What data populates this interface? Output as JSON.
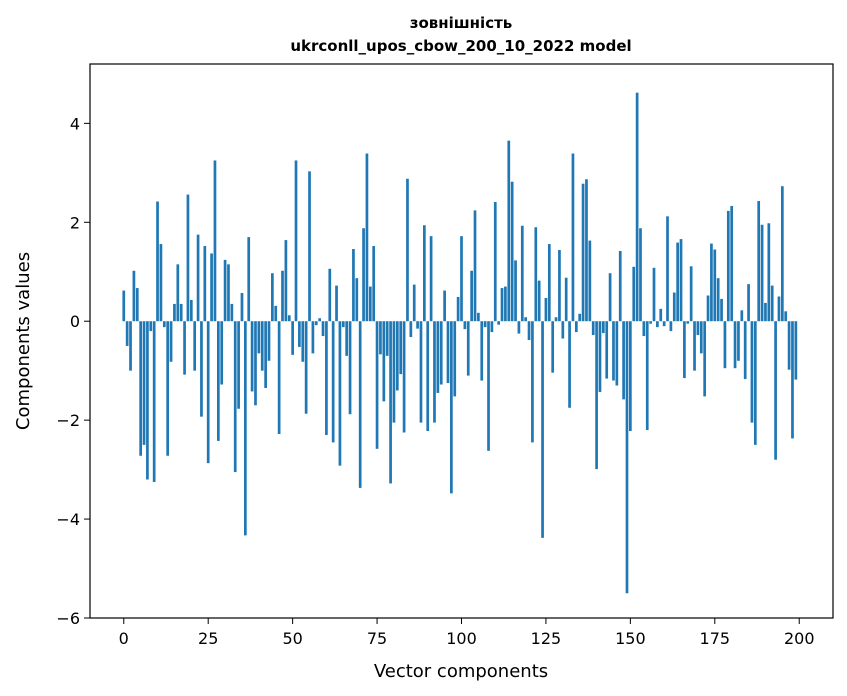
{
  "chart_data": {
    "type": "bar",
    "title": "зовнішність",
    "subtitle": "ukrconll_upos_cbow_200_10_2022 model",
    "xlabel": "Vector components",
    "ylabel": "Components values",
    "xlim": [
      -10,
      210
    ],
    "ylim": [
      -6,
      5.2
    ],
    "xticks": [
      0,
      25,
      50,
      75,
      100,
      125,
      150,
      175,
      200
    ],
    "yticks": [
      -6,
      -4,
      -2,
      0,
      2,
      4
    ],
    "xtick_labels": [
      "0",
      "25",
      "50",
      "75",
      "100",
      "125",
      "150",
      "175",
      "200"
    ],
    "ytick_labels": [
      "−6",
      "−4",
      "−2",
      "0",
      "2",
      "4"
    ],
    "grid": false,
    "bar_color": "#1f77b4",
    "values": [
      0.62,
      -0.5,
      -1.0,
      1.02,
      0.67,
      -2.72,
      -2.5,
      -3.2,
      -0.2,
      -3.25,
      2.42,
      1.56,
      -0.12,
      -2.72,
      -0.82,
      0.35,
      1.15,
      0.35,
      -1.08,
      2.56,
      0.43,
      -1.0,
      1.75,
      -1.93,
      1.52,
      -2.87,
      1.37,
      3.25,
      -2.42,
      -1.28,
      1.24,
      1.15,
      0.35,
      -3.05,
      -1.77,
      0.57,
      -4.33,
      1.7,
      -1.42,
      -1.7,
      -0.65,
      -1.0,
      -1.35,
      -0.8,
      0.97,
      0.31,
      -2.28,
      1.02,
      1.64,
      0.12,
      -0.68,
      3.25,
      -0.52,
      -0.82,
      -1.87,
      3.03,
      -0.65,
      -0.08,
      0.06,
      -0.3,
      -2.3,
      1.06,
      -2.45,
      0.72,
      -2.92,
      -0.12,
      -0.7,
      -1.88,
      1.46,
      0.87,
      -3.37,
      1.88,
      3.39,
      0.7,
      1.52,
      -2.58,
      -0.67,
      -1.62,
      -0.7,
      -3.28,
      -2.05,
      -1.4,
      -1.07,
      -2.25,
      2.88,
      -0.32,
      0.74,
      -0.15,
      -2.05,
      1.94,
      -2.22,
      1.72,
      -2.05,
      -1.45,
      -1.28,
      0.62,
      -1.25,
      -3.48,
      -1.52,
      0.49,
      1.72,
      -0.16,
      -1.1,
      1.02,
      2.24,
      0.17,
      -1.2,
      -0.12,
      -2.62,
      -0.22,
      2.41,
      -0.07,
      0.67,
      0.7,
      3.65,
      2.82,
      1.23,
      -0.25,
      1.93,
      0.08,
      -0.38,
      -2.45,
      1.9,
      0.82,
      -4.38,
      0.47,
      1.56,
      -1.04,
      0.08,
      1.44,
      -0.35,
      0.88,
      -1.75,
      3.39,
      -0.22,
      0.15,
      2.78,
      2.87,
      1.63,
      -0.28,
      -2.99,
      -1.43,
      -0.24,
      -1.16,
      0.97,
      -1.2,
      -1.3,
      1.42,
      -1.58,
      -5.5,
      -2.22,
      1.1,
      4.62,
      1.88,
      -0.3,
      -2.2,
      -0.05,
      1.08,
      -0.12,
      0.25,
      -0.1,
      2.12,
      -0.2,
      0.58,
      1.59,
      1.66,
      -1.15,
      -0.05,
      1.11,
      -1.0,
      -0.28,
      -0.65,
      -1.52,
      0.52,
      1.57,
      1.45,
      0.87,
      0.45,
      -0.95,
      2.23,
      2.33,
      -0.95,
      -0.8,
      0.22,
      -1.17,
      0.75,
      -2.05,
      -2.5,
      2.43,
      1.95,
      0.37,
      1.98,
      0.72,
      -2.8,
      0.5,
      2.73,
      0.2,
      -0.98,
      -2.37,
      -1.18
    ]
  }
}
